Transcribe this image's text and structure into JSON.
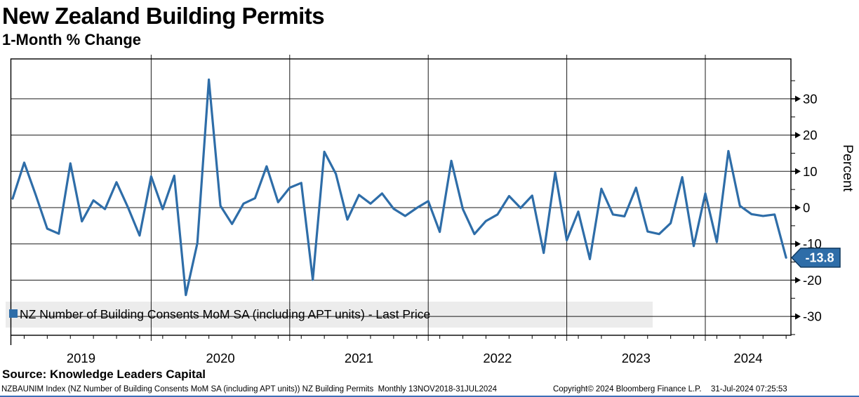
{
  "header": {
    "title": "New Zealand Building Permits",
    "subtitle": "1-Month % Change"
  },
  "legend": {
    "label": "NZ Number of Building Consents MoM SA (including APT units) - Last Price",
    "marker_color": "#2e6da8",
    "background_color": "#ececec"
  },
  "last_price": {
    "label": "-13.8",
    "value": -13.8,
    "tag_color": "#2e6da8",
    "tag_border_color": "#10395e",
    "tag_text_color": "#ffffff"
  },
  "axes": {
    "y": {
      "title": "Percent",
      "ticks": [
        30,
        20,
        10,
        0,
        -10,
        -20,
        -30
      ],
      "minor_tick_step": 5,
      "range": [
        -35,
        41
      ]
    },
    "x": {
      "years": [
        "2019",
        "2020",
        "2021",
        "2022",
        "2023",
        "2024"
      ]
    }
  },
  "source": {
    "label": "Source: Knowledge Leaders Capital"
  },
  "footer": {
    "left": "NZBAUNIM Index (NZ Number of Building Consents MoM SA (including APT units)) NZ Building Permits  Monthly 13NOV2018-31JUL2024",
    "copyright": "Copyright© 2024 Bloomberg Finance L.P.",
    "timestamp": "31-Jul-2024 07:25:53"
  },
  "colors": {
    "line": "#2e6da8",
    "grid": "#1a1a1a",
    "border": "#000000",
    "bottom_bar": "#3d6fb8"
  },
  "chart_data": {
    "type": "line",
    "title": "New Zealand Building Permits — 1-Month % Change",
    "ylabel": "Percent",
    "ylim": [
      -35,
      41
    ],
    "grid": true,
    "legend_position": "bottom-left",
    "series": [
      {
        "name": "NZ Number of Building Consents MoM SA (including APT units) - Last Price",
        "color": "#2e6da8",
        "dates": [
          "2018-12",
          "2019-01",
          "2019-02",
          "2019-03",
          "2019-04",
          "2019-05",
          "2019-06",
          "2019-07",
          "2019-08",
          "2019-09",
          "2019-10",
          "2019-11",
          "2019-12",
          "2020-01",
          "2020-02",
          "2020-03",
          "2020-04",
          "2020-05",
          "2020-06",
          "2020-07",
          "2020-08",
          "2020-09",
          "2020-10",
          "2020-11",
          "2020-12",
          "2021-01",
          "2021-02",
          "2021-03",
          "2021-04",
          "2021-05",
          "2021-06",
          "2021-07",
          "2021-08",
          "2021-09",
          "2021-10",
          "2021-11",
          "2021-12",
          "2022-01",
          "2022-02",
          "2022-03",
          "2022-04",
          "2022-05",
          "2022-06",
          "2022-07",
          "2022-08",
          "2022-09",
          "2022-10",
          "2022-11",
          "2022-12",
          "2023-01",
          "2023-02",
          "2023-03",
          "2023-04",
          "2023-05",
          "2023-06",
          "2023-07",
          "2023-08",
          "2023-09",
          "2023-10",
          "2023-11",
          "2023-12",
          "2024-01",
          "2024-02",
          "2024-03",
          "2024-04",
          "2024-05",
          "2024-06",
          "2024-07"
        ],
        "values": [
          2.5,
          12.4,
          3.5,
          -5.8,
          -7.2,
          12.2,
          -3.8,
          2.0,
          -0.4,
          7.0,
          0.0,
          -7.7,
          8.6,
          -0.4,
          8.8,
          -24.1,
          -9.8,
          35.3,
          0.5,
          -4.5,
          1.1,
          2.6,
          11.4,
          1.5,
          5.5,
          6.8,
          -19.9,
          15.4,
          9.3,
          -3.3,
          3.5,
          1.1,
          3.9,
          -0.3,
          -2.3,
          -0.1,
          1.8,
          -6.7,
          12.9,
          -0.4,
          -7.3,
          -3.7,
          -1.9,
          3.2,
          -0.1,
          3.3,
          -12.5,
          9.7,
          -9.0,
          -1.1,
          -14.2,
          5.2,
          -1.9,
          -2.4,
          5.5,
          -6.6,
          -7.3,
          -4.3,
          8.4,
          -10.6,
          3.9,
          -9.5,
          15.6,
          0.5,
          -1.8,
          -2.3,
          -1.9,
          -13.8
        ]
      }
    ]
  }
}
